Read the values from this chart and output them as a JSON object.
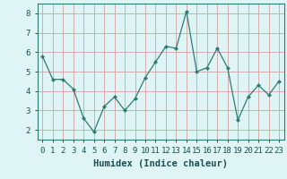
{
  "x": [
    0,
    1,
    2,
    3,
    4,
    5,
    6,
    7,
    8,
    9,
    10,
    11,
    12,
    13,
    14,
    15,
    16,
    17,
    18,
    19,
    20,
    21,
    22,
    23
  ],
  "y": [
    5.8,
    4.6,
    4.6,
    4.1,
    2.6,
    1.9,
    3.2,
    3.7,
    3.0,
    3.6,
    4.7,
    5.5,
    6.3,
    6.2,
    8.1,
    5.0,
    5.2,
    6.2,
    5.2,
    2.5,
    3.7,
    4.3,
    3.8,
    4.5
  ],
  "line_color": "#2d7d73",
  "marker": "D",
  "marker_size": 2.0,
  "bg_color": "#dff4f4",
  "grid_color": "#d4a0a0",
  "xlabel": "Humidex (Indice chaleur)",
  "xlim": [
    -0.5,
    23.5
  ],
  "ylim": [
    1.5,
    8.5
  ],
  "yticks": [
    2,
    3,
    4,
    5,
    6,
    7,
    8
  ],
  "xticks": [
    0,
    1,
    2,
    3,
    4,
    5,
    6,
    7,
    8,
    9,
    10,
    11,
    12,
    13,
    14,
    15,
    16,
    17,
    18,
    19,
    20,
    21,
    22,
    23
  ],
  "tick_label_fontsize": 6.5,
  "xlabel_fontsize": 7.5
}
